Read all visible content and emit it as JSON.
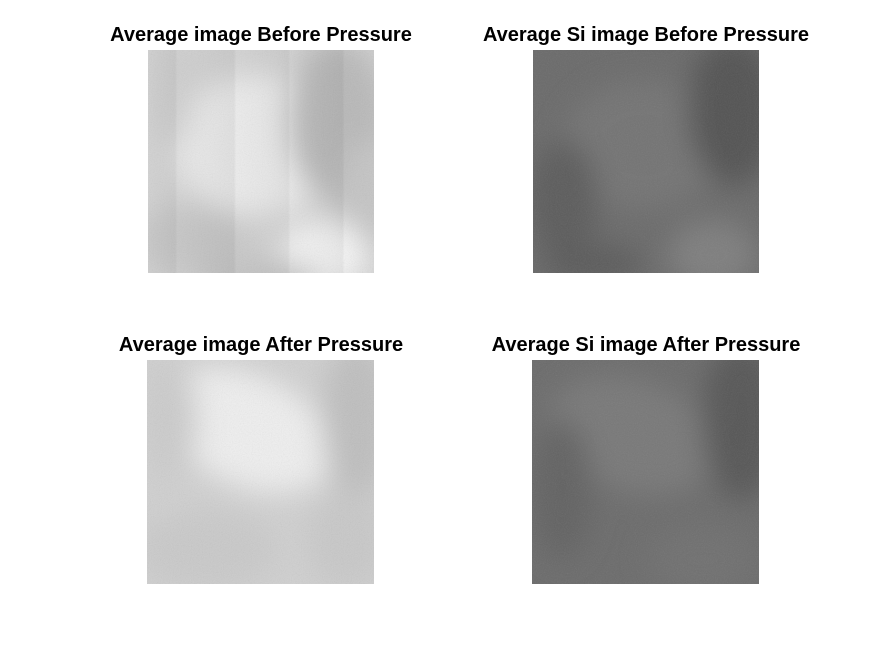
{
  "figure": {
    "panels": [
      {
        "title": "Average image Before Pressure",
        "tone": "light",
        "variant": "before"
      },
      {
        "title": "Average Si image Before Pressure",
        "tone": "dark",
        "variant": "before"
      },
      {
        "title": "Average image After Pressure",
        "tone": "light",
        "variant": "after"
      },
      {
        "title": "Average Si image After Pressure",
        "tone": "dark",
        "variant": "after"
      }
    ]
  }
}
